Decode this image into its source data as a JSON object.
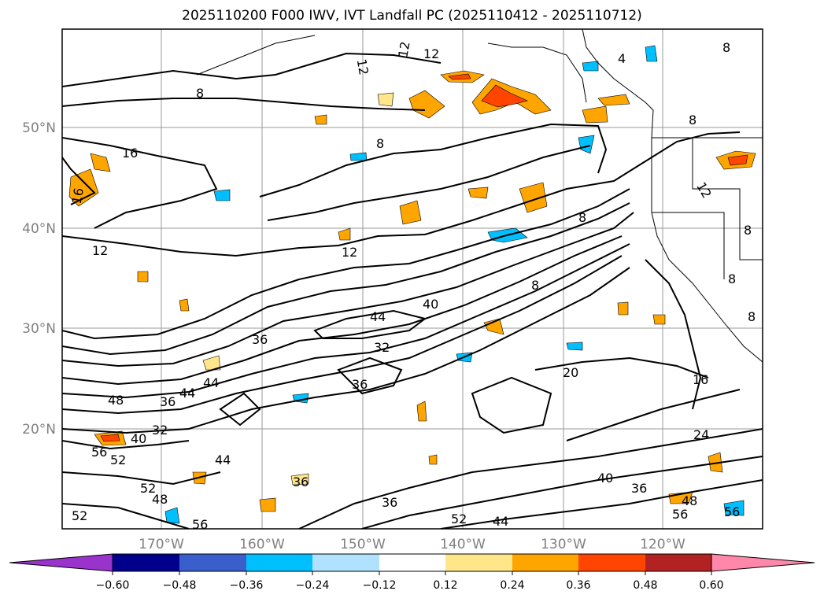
{
  "title": "2025110200 F000 IWV, IVT Landfall PC (2025110412 - 2025110712)",
  "map": {
    "lat_labels": [
      "50°N",
      "40°N",
      "30°N",
      "20°N"
    ],
    "lon_labels": [
      "170°W",
      "160°W",
      "150°W",
      "140°W",
      "130°W",
      "120°W"
    ],
    "contour_labels": [
      "12",
      "12",
      "12",
      "8",
      "8",
      "8",
      "16",
      "16",
      "12",
      "12",
      "8",
      "8",
      "8",
      "8",
      "12",
      "40",
      "44",
      "32",
      "36",
      "44",
      "44",
      "36",
      "36",
      "48",
      "40",
      "32",
      "52",
      "56",
      "52",
      "48",
      "56",
      "52",
      "44",
      "36",
      "36",
      "52",
      "44",
      "36",
      "40",
      "48",
      "56",
      "56",
      "20",
      "16",
      "24",
      "4",
      "8",
      "8"
    ]
  },
  "colorbar": {
    "ticks": [
      "−0.60",
      "−0.48",
      "−0.36",
      "−0.24",
      "−0.12",
      "0.12",
      "0.24",
      "0.36",
      "0.48",
      "0.60"
    ],
    "colors": [
      "#9933cc",
      "#00008b",
      "#3a5fcd",
      "#00bfff",
      "#b0e2ff",
      "#ffffff",
      "#ffe68a",
      "#ffa500",
      "#ff4500",
      "#b22222",
      "#ff88aa"
    ]
  }
}
